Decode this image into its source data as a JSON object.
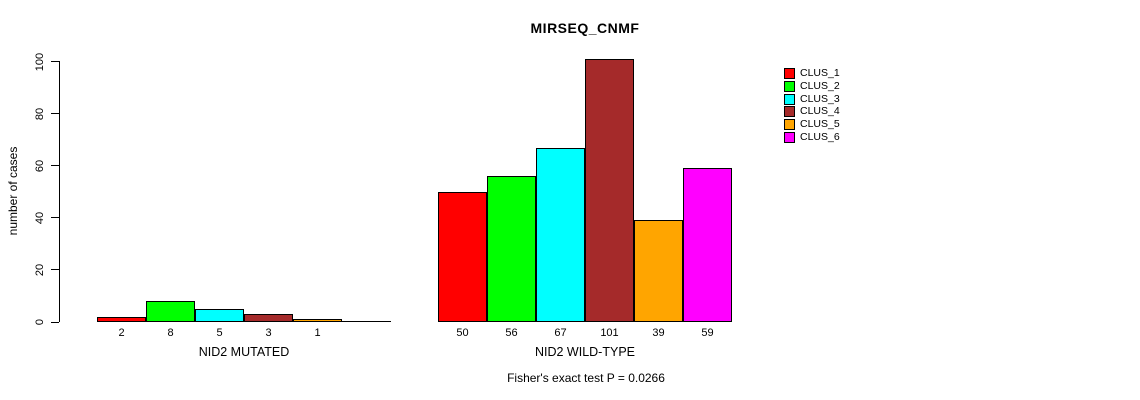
{
  "chart_data": {
    "type": "bar",
    "title": "MIRSEQ_CNMF",
    "ylabel": "number of cases",
    "xlabel": "",
    "ylim": [
      0,
      100
    ],
    "yticks": [
      0,
      20,
      40,
      60,
      80,
      100
    ],
    "grid": false,
    "legend_position": "right",
    "colors": [
      "#FF0000",
      "#00FF00",
      "#00FFFF",
      "#A52A2A",
      "#FFA500",
      "#FF00FF"
    ],
    "series_names": [
      "CLUS_1",
      "CLUS_2",
      "CLUS_3",
      "CLUS_4",
      "CLUS_5",
      "CLUS_6"
    ],
    "groups": [
      {
        "label": "NID2 MUTATED",
        "values": [
          2,
          8,
          5,
          3,
          1,
          0
        ],
        "bar_labels": [
          "2",
          "8",
          "5",
          "3",
          "1",
          ""
        ]
      },
      {
        "label": "NID2 WILD-TYPE",
        "values": [
          50,
          56,
          67,
          101,
          39,
          59
        ],
        "bar_labels": [
          "50",
          "56",
          "67",
          "101",
          "39",
          "59"
        ]
      }
    ],
    "annotation": "Fisher's exact test P = 0.0266"
  }
}
